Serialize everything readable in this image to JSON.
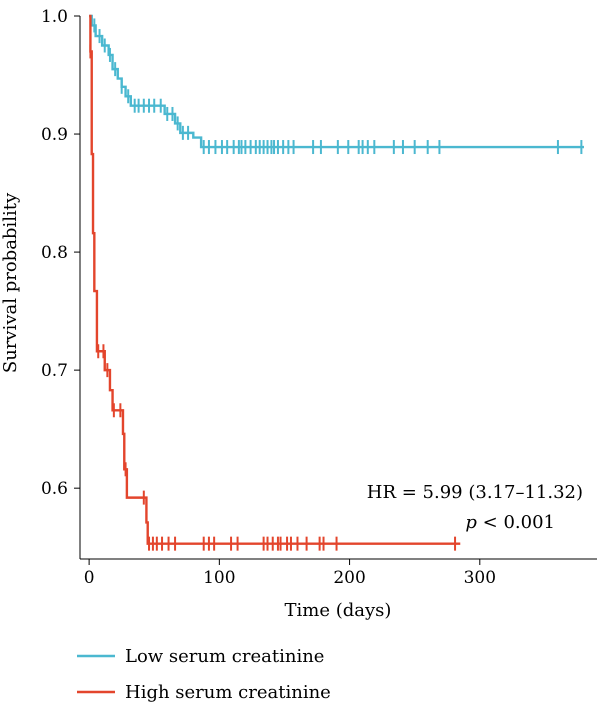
{
  "chart_data": {
    "type": "line",
    "subtype": "kaplan-meier",
    "xlabel": "Time (days)",
    "ylabel": "Survival probability",
    "xlim": [
      -7,
      390
    ],
    "ylim": [
      0.54,
      1.0
    ],
    "xticks": [
      0,
      100,
      200,
      300
    ],
    "yticks": [
      0.6,
      0.7,
      0.8,
      0.9,
      1.0
    ],
    "xtick_labels": [
      "0",
      "100",
      "200",
      "300"
    ],
    "ytick_labels": [
      "0.6",
      "0.7",
      "0.8",
      "0.9",
      "1.0"
    ],
    "annotation": {
      "hr_text": "HR = 5.99 (3.17–11.32)",
      "p_italic": "p",
      "p_rest": " < 0.001"
    },
    "legend_position": "bottom",
    "series": [
      {
        "name": "Low serum creatinine",
        "color": "#4bb8d0",
        "steps": [
          [
            0,
            1.0
          ],
          [
            2,
            0.992
          ],
          [
            5,
            0.983
          ],
          [
            10,
            0.975
          ],
          [
            15,
            0.967
          ],
          [
            18,
            0.955
          ],
          [
            22,
            0.947
          ],
          [
            25,
            0.94
          ],
          [
            28,
            0.932
          ],
          [
            32,
            0.924
          ],
          [
            58,
            0.917
          ],
          [
            66,
            0.909
          ],
          [
            70,
            0.901
          ],
          [
            80,
            0.897
          ],
          [
            86,
            0.889
          ],
          [
            380,
            0.889
          ]
        ],
        "censor_x": [
          4,
          8,
          12,
          16,
          20,
          25,
          30,
          35,
          38,
          42,
          46,
          50,
          55,
          60,
          64,
          68,
          72,
          76,
          88,
          92,
          97,
          102,
          106,
          111,
          115,
          117,
          120,
          124,
          128,
          131,
          134,
          137,
          140,
          142,
          145,
          149,
          153,
          157,
          172,
          178,
          191,
          199,
          207,
          210,
          214,
          219,
          234,
          241,
          250,
          260,
          269,
          360,
          378
        ]
      },
      {
        "name": "High serum creatinine",
        "color": "#e3452c",
        "steps": [
          [
            0,
            1.0
          ],
          [
            1,
            0.97
          ],
          [
            2,
            0.883
          ],
          [
            3,
            0.816
          ],
          [
            4,
            0.767
          ],
          [
            6,
            0.716
          ],
          [
            12,
            0.7
          ],
          [
            16,
            0.683
          ],
          [
            18,
            0.666
          ],
          [
            26,
            0.646
          ],
          [
            27,
            0.616
          ],
          [
            29,
            0.592
          ],
          [
            44,
            0.571
          ],
          [
            45,
            0.553
          ],
          [
            285,
            0.553
          ]
        ],
        "censor_x": [
          1,
          7,
          11,
          14,
          19,
          24,
          28,
          42,
          46,
          49,
          52,
          56,
          61,
          66,
          88,
          92,
          96,
          109,
          114,
          134,
          137,
          141,
          145,
          147,
          152,
          155,
          160,
          167,
          177,
          180,
          190,
          281
        ]
      }
    ]
  }
}
